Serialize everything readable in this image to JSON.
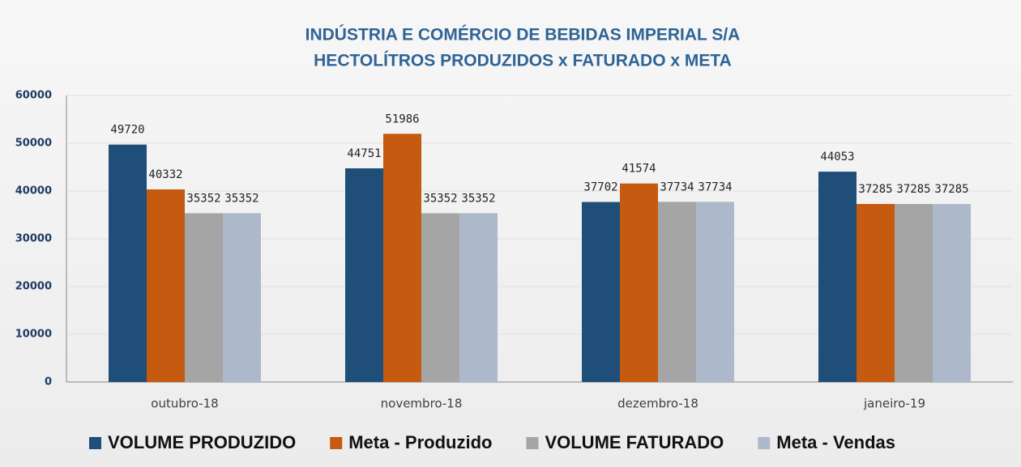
{
  "chart_data": {
    "type": "bar",
    "title": "INDÚSTRIA E COMÉRCIO DE BEBIDAS IMPERIAL S/A",
    "subtitle": "HECTOLÍTROS PRODUZIDOS x FATURADO x META",
    "categories": [
      "outubro-18",
      "novembro-18",
      "dezembro-18",
      "janeiro-19"
    ],
    "series": [
      {
        "name": "VOLUME PRODUZIDO",
        "color": "#1f4e79",
        "values": [
          49720,
          44751,
          37702,
          44053
        ]
      },
      {
        "name": "Meta - Produzido",
        "color": "#c55a11",
        "values": [
          40332,
          51986,
          41574,
          37285
        ]
      },
      {
        "name": "VOLUME FATURADO",
        "color": "#a5a5a5",
        "values": [
          35352,
          35352,
          37734,
          37285
        ]
      },
      {
        "name": "Meta - Vendas",
        "color": "#adb9ca",
        "values": [
          35352,
          35352,
          37734,
          37285
        ]
      }
    ],
    "ylim": [
      0,
      60000
    ],
    "yticks": [
      0,
      10000,
      20000,
      30000,
      40000,
      50000,
      60000
    ],
    "grid": true,
    "legend": "bottom"
  }
}
